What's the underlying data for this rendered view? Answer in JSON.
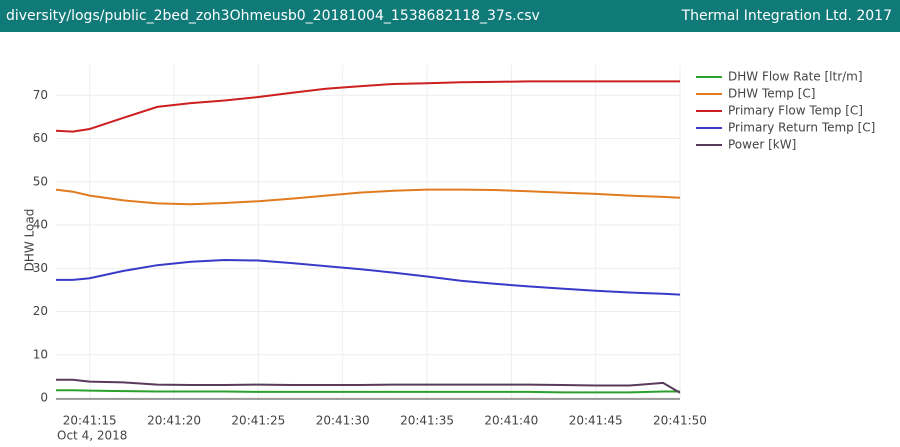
{
  "header": {
    "file": "diversity/logs/public_2bed_zoh3Ohmeusb0_20181004_1538682118_37s.csv",
    "company": "Thermal Integration Ltd. 2017"
  },
  "chart_data": {
    "type": "line",
    "y_label": "DHW Load",
    "date_label": "Oct 4, 2018",
    "x": [
      "20:41:13",
      "20:41:14",
      "20:41:15",
      "20:41:17",
      "20:41:19",
      "20:41:21",
      "20:41:23",
      "20:41:25",
      "20:41:27",
      "20:41:29",
      "20:41:31",
      "20:41:33",
      "20:41:35",
      "20:41:37",
      "20:41:39",
      "20:41:41",
      "20:41:43",
      "20:41:45",
      "20:41:47",
      "20:41:49",
      "20:41:50"
    ],
    "xlim": [
      "20:41:13",
      "20:41:50"
    ],
    "xticks": [
      "20:41:15",
      "20:41:20",
      "20:41:25",
      "20:41:30",
      "20:41:35",
      "20:41:40",
      "20:41:45",
      "20:41:50"
    ],
    "ylim": [
      0,
      77
    ],
    "yticks": [
      0,
      10,
      20,
      30,
      40,
      50,
      60,
      70
    ],
    "grid": true,
    "legend": "right",
    "series": [
      {
        "name": "DHW Flow Rate [ltr/m]",
        "color": "#2ca02c",
        "values": [
          1.8,
          1.8,
          1.7,
          1.6,
          1.5,
          1.5,
          1.5,
          1.4,
          1.4,
          1.4,
          1.4,
          1.4,
          1.4,
          1.4,
          1.4,
          1.4,
          1.3,
          1.3,
          1.3,
          1.5,
          1.5
        ]
      },
      {
        "name": "DHW Temp [C]",
        "color": "#e07b20",
        "values": [
          48.2,
          47.7,
          46.8,
          45.7,
          45.0,
          44.8,
          45.1,
          45.5,
          46.1,
          46.8,
          47.5,
          47.9,
          48.2,
          48.2,
          48.1,
          47.8,
          47.5,
          47.2,
          46.8,
          46.5,
          46.3
        ]
      },
      {
        "name": "Primary Flow Temp [C]",
        "color": "#cc1f1f",
        "values": [
          61.8,
          61.6,
          62.2,
          64.8,
          67.3,
          68.2,
          68.8,
          69.6,
          70.6,
          71.5,
          72.1,
          72.6,
          72.8,
          73.0,
          73.1,
          73.2,
          73.2,
          73.2,
          73.2,
          73.2,
          73.2
        ]
      },
      {
        "name": "Primary Return Temp [C]",
        "color": "#3a3ac8",
        "values": [
          27.3,
          27.3,
          27.7,
          29.4,
          30.7,
          31.5,
          31.9,
          31.8,
          31.2,
          30.5,
          29.8,
          29.0,
          28.1,
          27.1,
          26.4,
          25.8,
          25.3,
          24.8,
          24.4,
          24.1,
          23.9
        ]
      },
      {
        "name": "Power [kW]",
        "color": "#5a3a5a",
        "values": [
          4.2,
          4.2,
          3.8,
          3.6,
          3.1,
          3.0,
          3.0,
          3.1,
          3.0,
          3.0,
          3.0,
          3.1,
          3.1,
          3.1,
          3.1,
          3.1,
          3.0,
          2.9,
          2.9,
          3.5,
          1.2
        ]
      }
    ]
  }
}
